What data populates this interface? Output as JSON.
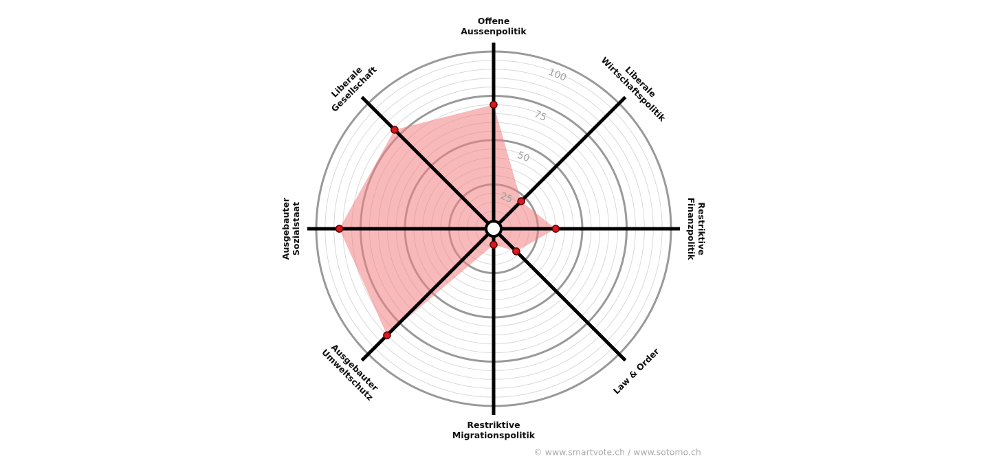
{
  "chart_data": {
    "type": "radar",
    "categories": [
      [
        "Offene",
        "Aussenpolitik"
      ],
      [
        "Liberale",
        "Wirtschaftspolitik"
      ],
      [
        "Restriktive",
        "Finanzpolitik"
      ],
      [
        "Law & Order"
      ],
      [
        "Restriktive",
        "Migrationspolitik"
      ],
      [
        "Ausgebauter",
        "Umweltschutz"
      ],
      [
        "Ausgebauter",
        "Sozialstaat"
      ],
      [
        "Liberale",
        "Gesellschaft"
      ]
    ],
    "values": [
      70,
      22,
      35,
      18,
      9,
      85,
      87,
      79
    ],
    "ylim": [
      0,
      100
    ],
    "yticks": [
      25,
      50,
      75,
      100
    ],
    "minor_ticks": [
      5,
      10,
      15,
      20,
      30,
      35,
      40,
      45,
      55,
      60,
      65,
      70,
      80,
      85,
      90,
      95
    ],
    "fill_color": "#f08080",
    "point_color": "#d71920",
    "grid": true,
    "source": "© www.smartvote.ch / www.sotomo.ch"
  }
}
